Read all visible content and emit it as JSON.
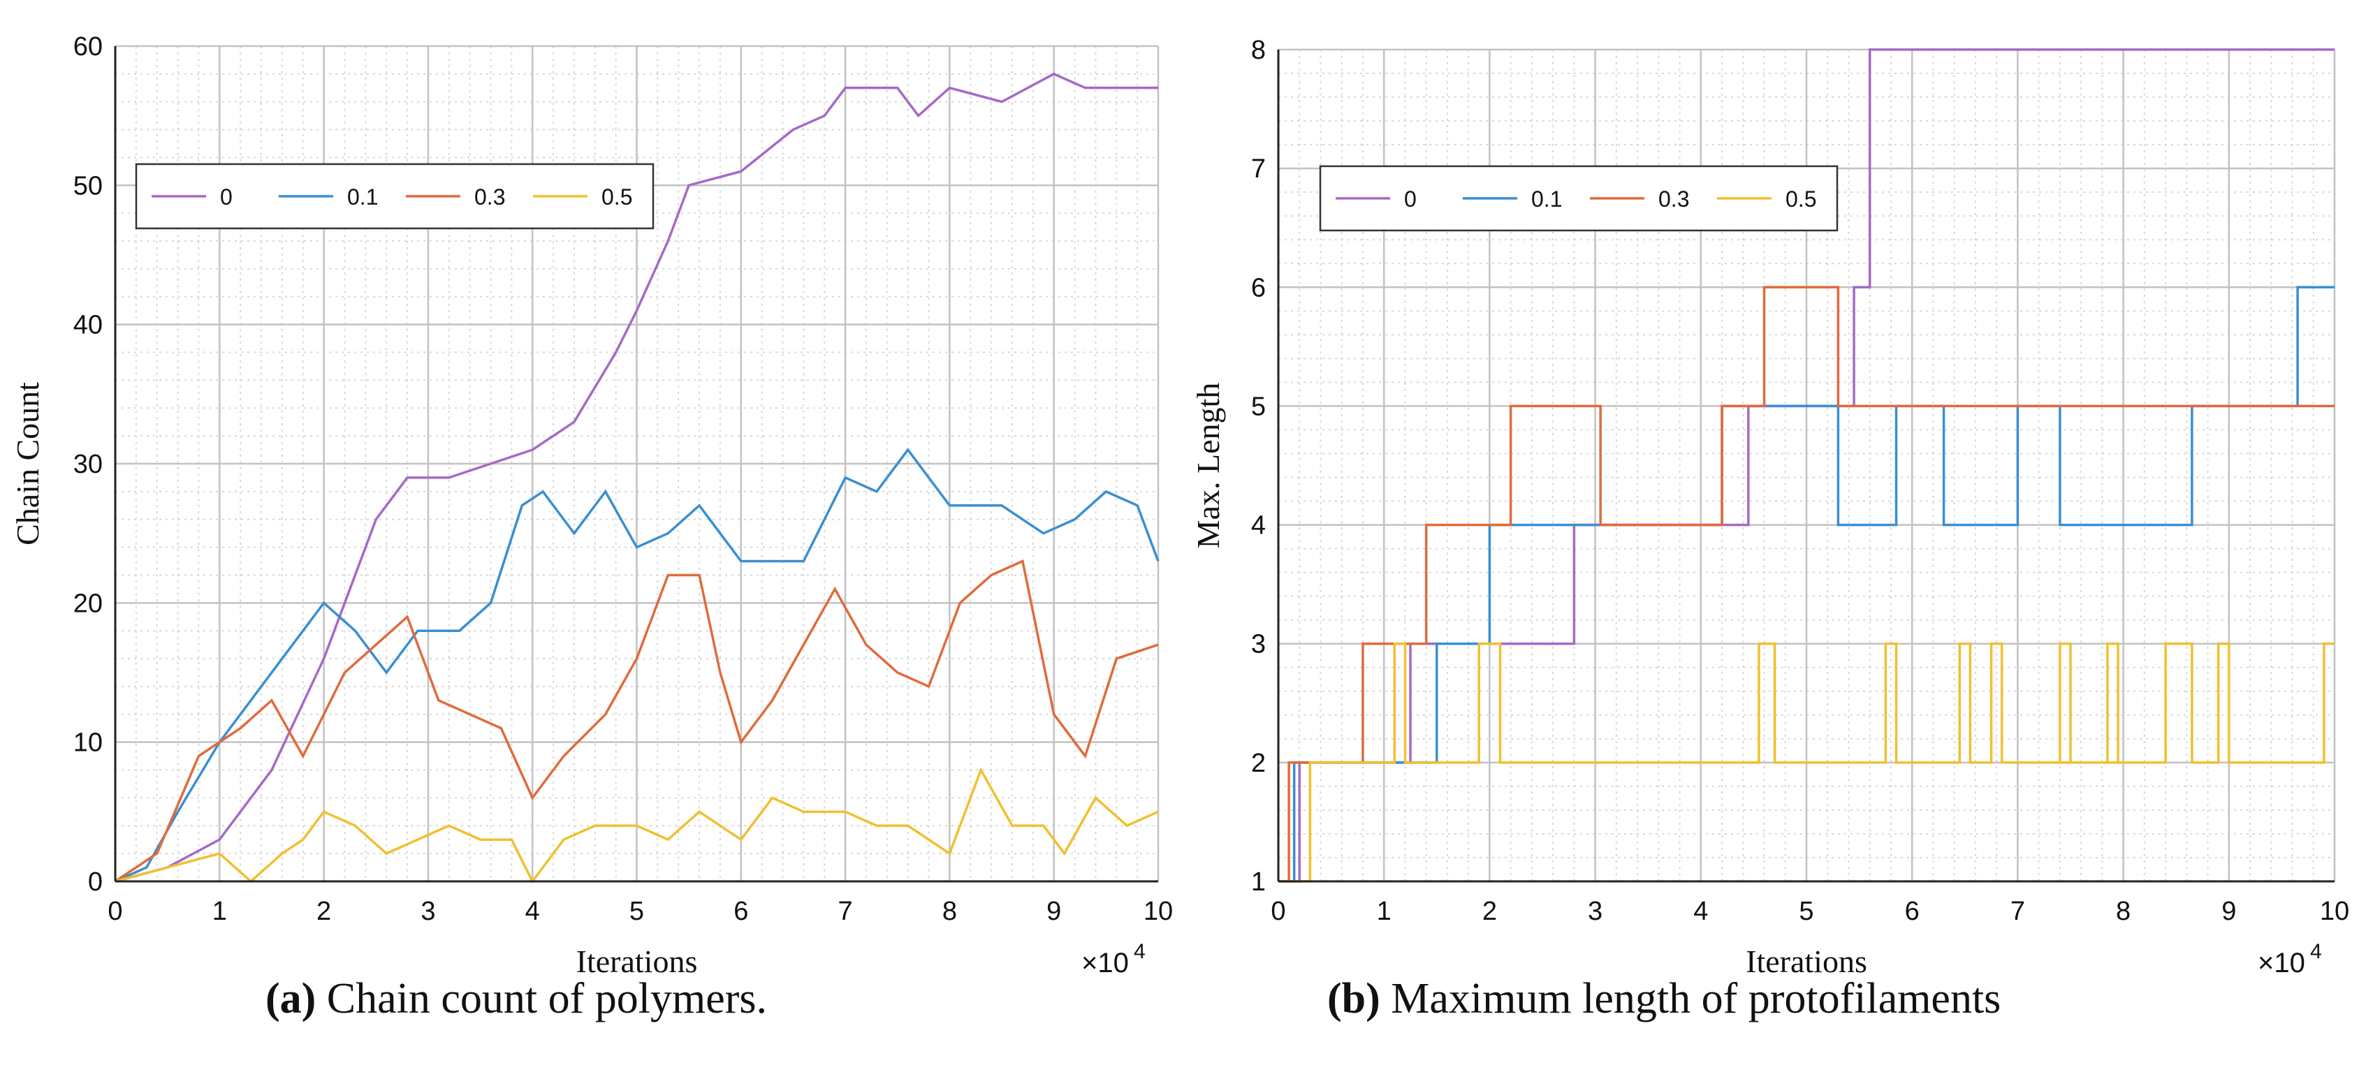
{
  "colors": {
    "0": "#a56ac6",
    "0.1": "#3a8fd1",
    "0.3": "#e06b3c",
    "0.5": "#f0c030"
  },
  "captions": {
    "a_label": "(a)",
    "a_text": " Chain count of polymers.",
    "b_label": "(b)",
    "b_text": " Maximum length of protofilaments"
  },
  "chart_data": [
    {
      "type": "line",
      "title": "",
      "xlabel": "Iterations",
      "ylabel": "Chain Count",
      "x_multiplier": "×10",
      "x_multiplier_exp": "4",
      "xlim": [
        0,
        10
      ],
      "ylim": [
        0,
        60
      ],
      "xticks": [
        0,
        1,
        2,
        3,
        4,
        5,
        6,
        7,
        8,
        9,
        10
      ],
      "yticks": [
        0,
        10,
        20,
        30,
        40,
        50,
        60
      ],
      "grid": true,
      "legend": {
        "placement": "top-left",
        "entries": [
          "0",
          "0.1",
          "0.3",
          "0.5"
        ]
      },
      "series": [
        {
          "name": "0",
          "step": false,
          "points": [
            [
              0,
              0
            ],
            [
              0.5,
              1
            ],
            [
              1,
              3
            ],
            [
              1.5,
              8
            ],
            [
              2,
              16
            ],
            [
              2.5,
              26
            ],
            [
              2.8,
              29
            ],
            [
              3.2,
              29
            ],
            [
              3.6,
              30
            ],
            [
              4,
              31
            ],
            [
              4.4,
              33
            ],
            [
              4.8,
              38
            ],
            [
              5,
              41
            ],
            [
              5.3,
              46
            ],
            [
              5.5,
              50
            ],
            [
              6,
              51
            ],
            [
              6.5,
              54
            ],
            [
              6.8,
              55
            ],
            [
              7,
              57
            ],
            [
              7.5,
              57
            ],
            [
              7.7,
              55
            ],
            [
              8,
              57
            ],
            [
              8.5,
              56
            ],
            [
              9,
              58
            ],
            [
              9.3,
              57
            ],
            [
              9.6,
              57
            ],
            [
              10,
              57
            ]
          ]
        },
        {
          "name": "0.1",
          "step": false,
          "points": [
            [
              0,
              0
            ],
            [
              0.3,
              1
            ],
            [
              0.6,
              5
            ],
            [
              1,
              10
            ],
            [
              1.3,
              13
            ],
            [
              1.6,
              16
            ],
            [
              1.8,
              18
            ],
            [
              2,
              20
            ],
            [
              2.3,
              18
            ],
            [
              2.6,
              15
            ],
            [
              2.9,
              18
            ],
            [
              3.3,
              18
            ],
            [
              3.6,
              20
            ],
            [
              3.9,
              27
            ],
            [
              4.1,
              28
            ],
            [
              4.4,
              25
            ],
            [
              4.7,
              28
            ],
            [
              5,
              24
            ],
            [
              5.3,
              25
            ],
            [
              5.6,
              27
            ],
            [
              6,
              23
            ],
            [
              6.3,
              23
            ],
            [
              6.6,
              23
            ],
            [
              7,
              29
            ],
            [
              7.3,
              28
            ],
            [
              7.6,
              31
            ],
            [
              8,
              27
            ],
            [
              8.5,
              27
            ],
            [
              8.9,
              25
            ],
            [
              9.2,
              26
            ],
            [
              9.5,
              28
            ],
            [
              9.8,
              27
            ],
            [
              10,
              23
            ]
          ]
        },
        {
          "name": "0.3",
          "step": false,
          "points": [
            [
              0,
              0
            ],
            [
              0.4,
              2
            ],
            [
              0.8,
              9
            ],
            [
              1.2,
              11
            ],
            [
              1.5,
              13
            ],
            [
              1.8,
              9
            ],
            [
              2.2,
              15
            ],
            [
              2.5,
              17
            ],
            [
              2.8,
              19
            ],
            [
              3.1,
              13
            ],
            [
              3.4,
              12
            ],
            [
              3.7,
              11
            ],
            [
              4,
              6
            ],
            [
              4.3,
              9
            ],
            [
              4.7,
              12
            ],
            [
              5,
              16
            ],
            [
              5.3,
              22
            ],
            [
              5.6,
              22
            ],
            [
              5.8,
              15
            ],
            [
              6,
              10
            ],
            [
              6.3,
              13
            ],
            [
              6.6,
              17
            ],
            [
              6.9,
              21
            ],
            [
              7.2,
              17
            ],
            [
              7.5,
              15
            ],
            [
              7.8,
              14
            ],
            [
              8.1,
              20
            ],
            [
              8.4,
              22
            ],
            [
              8.7,
              23
            ],
            [
              9,
              12
            ],
            [
              9.3,
              9
            ],
            [
              9.6,
              16
            ],
            [
              10,
              17
            ]
          ]
        },
        {
          "name": "0.5",
          "step": false,
          "points": [
            [
              0,
              0
            ],
            [
              0.5,
              1
            ],
            [
              1,
              2
            ],
            [
              1.3,
              0
            ],
            [
              1.6,
              2
            ],
            [
              1.8,
              3
            ],
            [
              2,
              5
            ],
            [
              2.3,
              4
            ],
            [
              2.6,
              2
            ],
            [
              2.9,
              3
            ],
            [
              3.2,
              4
            ],
            [
              3.5,
              3
            ],
            [
              3.8,
              3
            ],
            [
              4,
              0
            ],
            [
              4.3,
              3
            ],
            [
              4.6,
              4
            ],
            [
              5,
              4
            ],
            [
              5.3,
              3
            ],
            [
              5.6,
              5
            ],
            [
              6,
              3
            ],
            [
              6.3,
              6
            ],
            [
              6.6,
              5
            ],
            [
              7,
              5
            ],
            [
              7.3,
              4
            ],
            [
              7.6,
              4
            ],
            [
              8,
              2
            ],
            [
              8.3,
              8
            ],
            [
              8.6,
              4
            ],
            [
              8.9,
              4
            ],
            [
              9.1,
              2
            ],
            [
              9.4,
              6
            ],
            [
              9.7,
              4
            ],
            [
              10,
              5
            ]
          ]
        }
      ]
    },
    {
      "type": "line",
      "title": "",
      "xlabel": "Iterations",
      "ylabel": "Max. Length",
      "x_multiplier": "×10",
      "x_multiplier_exp": "4",
      "xlim": [
        0,
        10
      ],
      "ylim": [
        1,
        8
      ],
      "xticks": [
        0,
        1,
        2,
        3,
        4,
        5,
        6,
        7,
        8,
        9,
        10
      ],
      "yticks": [
        1,
        2,
        3,
        4,
        5,
        6,
        7,
        8
      ],
      "grid": true,
      "legend": {
        "placement": "top-left",
        "entries": [
          "0",
          "0.1",
          "0.3",
          "0.5"
        ]
      },
      "series": [
        {
          "name": "0",
          "step": true,
          "points": [
            [
              0,
              1
            ],
            [
              0.2,
              2
            ],
            [
              1.25,
              3
            ],
            [
              2.8,
              4
            ],
            [
              4.45,
              5
            ],
            [
              5.45,
              6
            ],
            [
              5.6,
              8
            ],
            [
              10,
              8
            ]
          ]
        },
        {
          "name": "0.1",
          "step": true,
          "points": [
            [
              0,
              1
            ],
            [
              0.15,
              2
            ],
            [
              1.5,
              3
            ],
            [
              2,
              4
            ],
            [
              4.2,
              5
            ],
            [
              5.3,
              4
            ],
            [
              5.85,
              5
            ],
            [
              6.3,
              4
            ],
            [
              7,
              5
            ],
            [
              7.4,
              4
            ],
            [
              8.65,
              5
            ],
            [
              9.65,
              6
            ],
            [
              10,
              6
            ]
          ]
        },
        {
          "name": "0.3",
          "step": true,
          "points": [
            [
              0,
              1
            ],
            [
              0.1,
              2
            ],
            [
              0.8,
              3
            ],
            [
              1.4,
              4
            ],
            [
              2.2,
              5
            ],
            [
              3.05,
              4
            ],
            [
              4.2,
              5
            ],
            [
              4.6,
              6
            ],
            [
              5.3,
              5
            ],
            [
              10,
              5
            ]
          ]
        },
        {
          "name": "0.5",
          "step": true,
          "points": [
            [
              0,
              1
            ],
            [
              0.3,
              2
            ],
            [
              0.75,
              2
            ],
            [
              1.1,
              3
            ],
            [
              1.2,
              2
            ],
            [
              1.9,
              3
            ],
            [
              2.1,
              2
            ],
            [
              4.55,
              3
            ],
            [
              4.7,
              2
            ],
            [
              5.75,
              3
            ],
            [
              5.85,
              2
            ],
            [
              6.45,
              3
            ],
            [
              6.55,
              2
            ],
            [
              6.75,
              3
            ],
            [
              6.85,
              2
            ],
            [
              7.85,
              3
            ],
            [
              7.95,
              2
            ],
            [
              7.4,
              3
            ],
            [
              7.5,
              2
            ],
            [
              8.4,
              3
            ],
            [
              8.65,
              2
            ],
            [
              8.9,
              3
            ],
            [
              9.0,
              2
            ],
            [
              9.9,
              3
            ],
            [
              10,
              3
            ]
          ]
        }
      ]
    }
  ]
}
